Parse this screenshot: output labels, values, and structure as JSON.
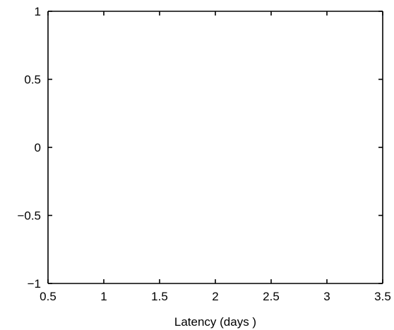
{
  "chart_data": {
    "type": "line",
    "title": "",
    "xlabel": "Latency (days )",
    "ylabel": "",
    "xlim": [
      0.5,
      3.5
    ],
    "ylim": [
      -1,
      1
    ],
    "x_ticks": [
      {
        "value": 0.5,
        "label": "0.5"
      },
      {
        "value": 1,
        "label": "1"
      },
      {
        "value": 1.5,
        "label": "1.5"
      },
      {
        "value": 2,
        "label": "2"
      },
      {
        "value": 2.5,
        "label": "2.5"
      },
      {
        "value": 3,
        "label": "3"
      },
      {
        "value": 3.5,
        "label": "3.5"
      }
    ],
    "y_ticks": [
      {
        "value": -1,
        "label": "−1"
      },
      {
        "value": -0.5,
        "label": "−0.5"
      },
      {
        "value": 0,
        "label": "0"
      },
      {
        "value": 0.5,
        "label": "0.5"
      },
      {
        "value": 1,
        "label": "1"
      }
    ],
    "series": [],
    "grid": false,
    "colors": {
      "axis": "#000000",
      "background": "#ffffff"
    }
  }
}
